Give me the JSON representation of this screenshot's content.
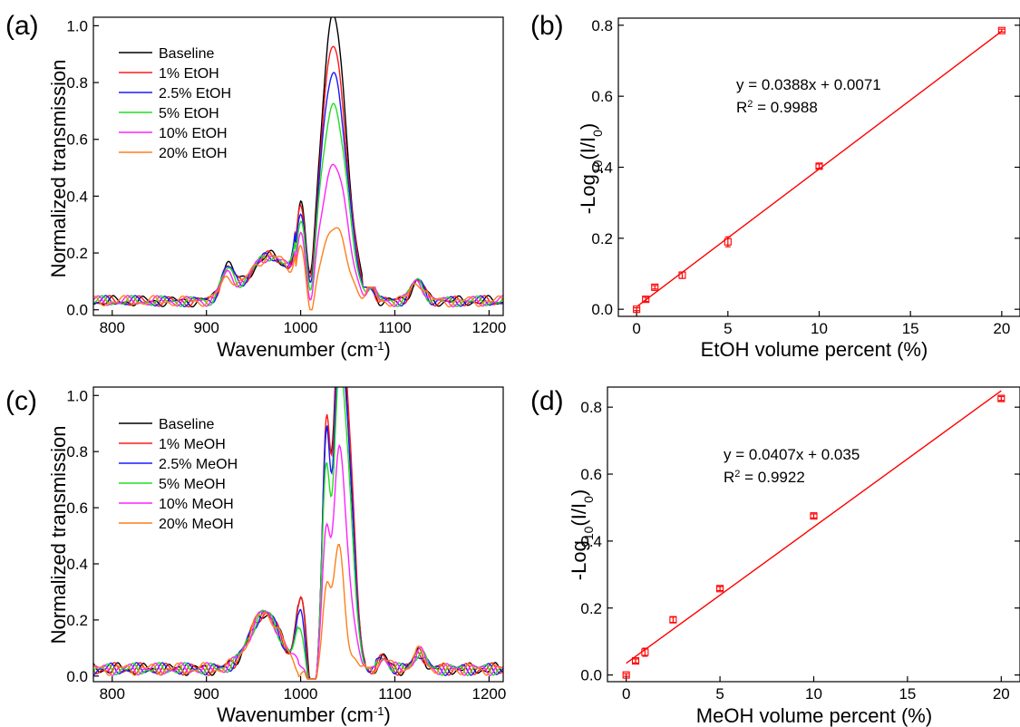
{
  "panels": {
    "a": {
      "label": "(a)",
      "xlabel_main": "Wavenumber (cm",
      "xlabel_sup": "-1",
      "xlabel_end": ")",
      "ylabel": "Normalized transmission"
    },
    "b": {
      "label": "(b)",
      "xlabel": "EtOH volume percent (%)",
      "ylabel_main": "-Log",
      "ylabel_sub1": "10",
      "ylabel_mid": "(I/I",
      "ylabel_sub2": "0",
      "ylabel_end": ")",
      "equation": "y = 0.0388x + 0.0071",
      "r2_label": "R",
      "r2_sup": "2",
      "r2_value": " = 0.9988"
    },
    "c": {
      "label": "(c)",
      "xlabel_main": "Wavenumber (cm",
      "xlabel_sup": "-1",
      "xlabel_end": ")",
      "ylabel": "Normalized transmission"
    },
    "d": {
      "label": "(d)",
      "xlabel": "MeOH volume percent (%)",
      "ylabel_main": "-Log",
      "ylabel_sub1": "10",
      "ylabel_mid": "(I/I",
      "ylabel_sub2": "0",
      "ylabel_end": ")",
      "equation": "y = 0.0407x + 0.035",
      "r2_label": "R",
      "r2_sup": "2",
      "r2_value": " = 0.9922"
    }
  },
  "chart_data": [
    {
      "panel": "a",
      "type": "line",
      "xlabel": "Wavenumber (cm-1)",
      "ylabel": "Normalized transmission",
      "xlim": [
        780,
        1215
      ],
      "ylim": [
        -0.02,
        1.03
      ],
      "xticks": [
        800,
        900,
        1000,
        1100,
        1200
      ],
      "yticks": [
        0.0,
        0.2,
        0.4,
        0.6,
        0.8,
        1.0
      ],
      "legend_position": "top-left",
      "series": [
        {
          "name": "Baseline",
          "color": "#000000",
          "peak1": 0.49,
          "peak2": 1.0,
          "dip": 0.14,
          "shoulder_920": 0.12
        },
        {
          "name": "1% EtOH",
          "color": "#ff1a1a",
          "peak1": 0.49,
          "peak2": 0.9,
          "dip": 0.14,
          "shoulder_920": 0.1
        },
        {
          "name": "2.5% EtOH",
          "color": "#1a1aff",
          "peak1": 0.48,
          "peak2": 0.81,
          "dip": 0.14,
          "shoulder_920": 0.1
        },
        {
          "name": "5% EtOH",
          "color": "#22dd22",
          "peak1": 0.46,
          "peak2": 0.7,
          "dip": 0.13,
          "shoulder_920": 0.09
        },
        {
          "name": "10% EtOH",
          "color": "#ff22ff",
          "peak1": 0.42,
          "peak2": 0.49,
          "dip": 0.12,
          "shoulder_920": 0.08
        },
        {
          "name": "20% EtOH",
          "color": "#ff7f1a",
          "peak1": 0.38,
          "peak2": 0.26,
          "dip": 0.1,
          "shoulder_920": 0.07
        }
      ]
    },
    {
      "panel": "b",
      "type": "scatter",
      "xlabel": "EtOH volume percent (%)",
      "ylabel": "-Log10(I/I0)",
      "xlim": [
        -1,
        21
      ],
      "ylim": [
        -0.02,
        0.82
      ],
      "xticks": [
        0,
        5,
        10,
        15,
        20
      ],
      "yticks": [
        0.0,
        0.2,
        0.4,
        0.6,
        0.8
      ],
      "color": "#ff0000",
      "x": [
        0,
        0.5,
        1,
        2.5,
        5,
        10,
        20
      ],
      "y": [
        0.0,
        0.028,
        0.062,
        0.096,
        0.19,
        0.403,
        0.785
      ],
      "err": [
        0.004,
        0.006,
        0.005,
        0.009,
        0.014,
        0.006,
        0.004
      ],
      "fit": {
        "slope": 0.0388,
        "intercept": 0.0071
      }
    },
    {
      "panel": "c",
      "type": "line",
      "xlabel": "Wavenumber (cm-1)",
      "ylabel": "Normalized transmission",
      "xlim": [
        780,
        1215
      ],
      "ylim": [
        -0.02,
        1.03
      ],
      "xticks": [
        800,
        900,
        1000,
        1100,
        1200
      ],
      "yticks": [
        0.0,
        0.2,
        0.4,
        0.6,
        0.8,
        1.0
      ],
      "legend_position": "top-left",
      "series": [
        {
          "name": "Baseline",
          "color": "#000000",
          "peak1": 0.48,
          "peakA": 0.8,
          "peakB": 1.0,
          "dip": 0.12,
          "dip2": 0.72
        },
        {
          "name": "1% MeOH",
          "color": "#ff1a1a",
          "peak1": 0.46,
          "peakA": 0.82,
          "peakB": 0.96,
          "dip": 0.12,
          "dip2": 0.8
        },
        {
          "name": "2.5% MeOH",
          "color": "#1a1aff",
          "peak1": 0.41,
          "peakA": 0.78,
          "peakB": 0.91,
          "dip": 0.11,
          "dip2": 0.7
        },
        {
          "name": "5% MeOH",
          "color": "#22dd22",
          "peak1": 0.36,
          "peakA": 0.68,
          "peakB": 0.83,
          "dip": 0.11,
          "dip2": 0.6
        },
        {
          "name": "10% MeOH",
          "color": "#ff22ff",
          "peak1": 0.25,
          "peakA": 0.49,
          "peakB": 0.67,
          "dip": 0.1,
          "dip2": 0.3
        },
        {
          "name": "20% MeOH",
          "color": "#ff7f1a",
          "peak1": 0.21,
          "peakA": 0.29,
          "peakB": 0.41,
          "dip": 0.06,
          "dip2": 0.06
        }
      ]
    },
    {
      "panel": "d",
      "type": "scatter",
      "xlabel": "MeOH volume percent (%)",
      "ylabel": "-Log10(I/I0)",
      "xlim": [
        -1,
        21
      ],
      "ylim": [
        -0.02,
        0.86
      ],
      "xticks": [
        0,
        5,
        10,
        15,
        20
      ],
      "yticks": [
        0.0,
        0.2,
        0.4,
        0.6,
        0.8
      ],
      "color": "#ff0000",
      "x": [
        0,
        0.5,
        1,
        2.5,
        5,
        10,
        20
      ],
      "y": [
        0.0,
        0.042,
        0.068,
        0.165,
        0.258,
        0.475,
        0.826
      ],
      "err": [
        0.004,
        0.006,
        0.012,
        0.008,
        0.006,
        0.006,
        0.006
      ],
      "fit": {
        "slope": 0.0407,
        "intercept": 0.035
      }
    }
  ]
}
